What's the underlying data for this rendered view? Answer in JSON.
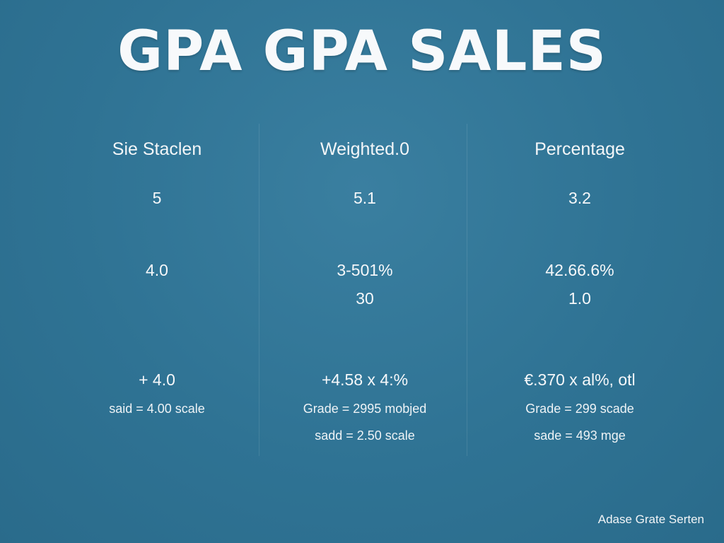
{
  "title": "GPA GPA SALES",
  "columns": [
    {
      "header": "Sie Staclen",
      "value_1": "5",
      "value_2": "4.0",
      "value_3": "",
      "formula": "+ 4.0",
      "note_1": "said = 4.00 scale",
      "note_2": ""
    },
    {
      "header": "Weighted.0",
      "value_1": "5.1",
      "value_2": "3-501%",
      "value_3": "30",
      "formula": "+4.58 x 4:%",
      "note_1": "Grade = 2995 mobjed",
      "note_2": "sadd = 2.50 scale"
    },
    {
      "header": "Percentage",
      "value_1": "3.2",
      "value_2": "42.66.6%",
      "value_3": "1.0",
      "formula": "€.370 x al%, otl",
      "note_1": "Grade = 299 scade",
      "note_2": "sade = 493 mge"
    }
  ],
  "footer": "Adase Grate Serten",
  "colors": {
    "background": "#2f7394",
    "text": "#ffffff"
  }
}
